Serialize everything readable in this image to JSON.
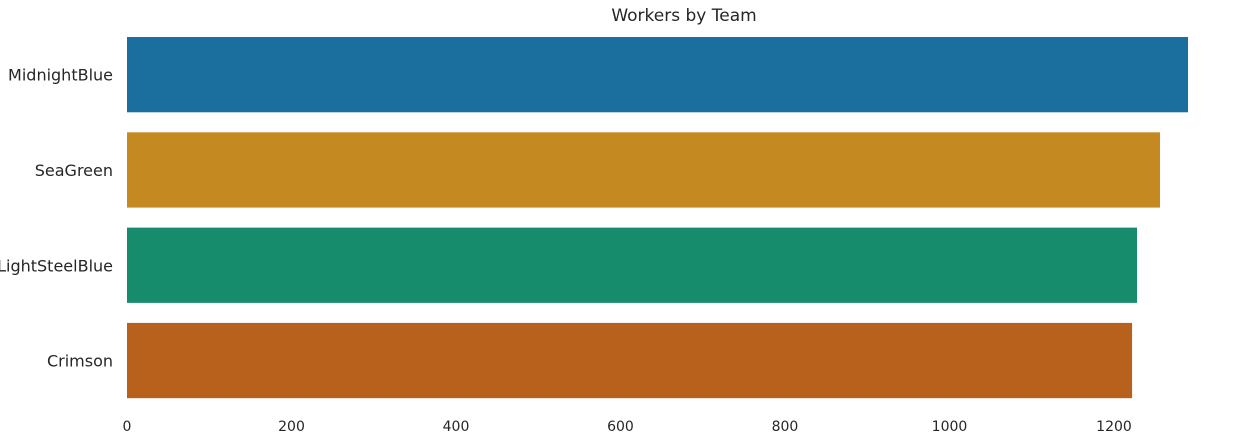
{
  "chart_data": {
    "type": "bar",
    "orientation": "horizontal",
    "title": "Workers by Team",
    "xlabel": "",
    "ylabel": "",
    "categories": [
      "MidnightBlue",
      "SeaGreen",
      "LightSteelBlue",
      "Crimson"
    ],
    "values": [
      1290,
      1256,
      1228,
      1222
    ],
    "colors": [
      "#1a6f9e",
      "#c48a21",
      "#178c6c",
      "#b8611d"
    ],
    "xlim": [
      0,
      1300
    ],
    "xticks": [
      0,
      200,
      400,
      600,
      800,
      1000,
      1200
    ],
    "xtick_labels": [
      "0",
      "200",
      "400",
      "600",
      "800",
      "1000",
      "1200"
    ],
    "grid": false,
    "legend": "none"
  }
}
